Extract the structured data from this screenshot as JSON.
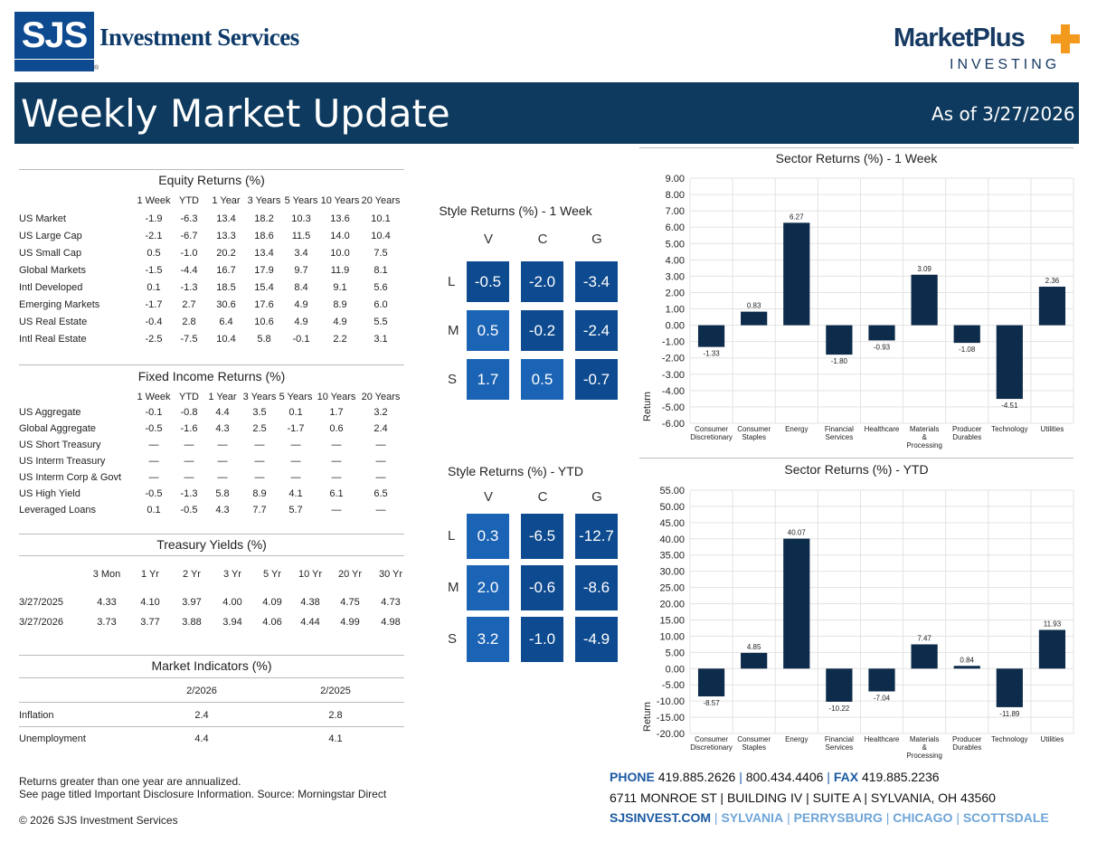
{
  "header": {
    "logo_text": "SJS",
    "company": "Investment Services",
    "registered": "®",
    "brand_title": "MarketPlus",
    "brand_sub": "INVESTING",
    "title": "Weekly Market Update",
    "as_of": "As of 3/27/2026"
  },
  "colors": {
    "navy": "#0d3a5e",
    "dark_bar": "#0d2b4a",
    "style_dark": "#0d4a8f",
    "style_light": "#1a6cc0"
  },
  "equity": {
    "title": "Equity Returns (%)",
    "columns": [
      "1 Week",
      "YTD",
      "1 Year",
      "3 Years",
      "5 Years",
      "10 Years",
      "20 Years"
    ],
    "rows": [
      {
        "label": "US Market",
        "values": [
          "-1.9",
          "-6.3",
          "13.4",
          "18.2",
          "10.3",
          "13.6",
          "10.1"
        ]
      },
      {
        "label": "US Large Cap",
        "values": [
          "-2.1",
          "-6.7",
          "13.3",
          "18.6",
          "11.5",
          "14.0",
          "10.4"
        ]
      },
      {
        "label": "US Small Cap",
        "values": [
          "0.5",
          "-1.0",
          "20.2",
          "13.4",
          "3.4",
          "10.0",
          "7.5"
        ]
      },
      {
        "label": "Global Markets",
        "values": [
          "-1.5",
          "-4.4",
          "16.7",
          "17.9",
          "9.7",
          "11.9",
          "8.1"
        ]
      },
      {
        "label": "Intl Developed",
        "values": [
          "0.1",
          "-1.3",
          "18.5",
          "15.4",
          "8.4",
          "9.1",
          "5.6"
        ]
      },
      {
        "label": "Emerging Markets",
        "values": [
          "-1.7",
          "2.7",
          "30.6",
          "17.6",
          "4.9",
          "8.9",
          "6.0"
        ]
      },
      {
        "label": "US Real Estate",
        "values": [
          "-0.4",
          "2.8",
          "6.4",
          "10.6",
          "4.9",
          "4.9",
          "5.5"
        ]
      },
      {
        "label": "Intl Real Estate",
        "values": [
          "-2.5",
          "-7.5",
          "10.4",
          "5.8",
          "-0.1",
          "2.2",
          "3.1"
        ]
      }
    ]
  },
  "fixed": {
    "title": "Fixed Income Returns (%)",
    "columns": [
      "1 Week",
      "YTD",
      "1 Year",
      "3 Years",
      "5 Years",
      "10 Years",
      "20 Years"
    ],
    "rows": [
      {
        "label": "US Aggregate",
        "values": [
          "-0.1",
          "-0.8",
          "4.4",
          "3.5",
          "0.1",
          "1.7",
          "3.2"
        ]
      },
      {
        "label": "Global Aggregate",
        "values": [
          "-0.5",
          "-1.6",
          "4.3",
          "2.5",
          "-1.7",
          "0.6",
          "2.4"
        ]
      },
      {
        "label": "US Short Treasury",
        "values": [
          "—",
          "—",
          "—",
          "—",
          "—",
          "—",
          "—"
        ]
      },
      {
        "label": "US Interm Treasury",
        "values": [
          "—",
          "—",
          "—",
          "—",
          "—",
          "—",
          "—"
        ]
      },
      {
        "label": "US Interm Corp & Govt",
        "values": [
          "—",
          "—",
          "—",
          "—",
          "—",
          "—",
          "—"
        ]
      },
      {
        "label": "US High Yield",
        "values": [
          "-0.5",
          "-1.3",
          "5.8",
          "8.9",
          "4.1",
          "6.1",
          "6.5"
        ]
      },
      {
        "label": "Leveraged Loans",
        "values": [
          "0.1",
          "-0.5",
          "4.3",
          "7.7",
          "5.7",
          "—",
          "—"
        ]
      }
    ]
  },
  "treasury": {
    "title": "Treasury Yields (%)",
    "columns": [
      "3 Mon",
      "1 Yr",
      "2 Yr",
      "3 Yr",
      "5 Yr",
      "10 Yr",
      "20 Yr",
      "30 Yr"
    ],
    "rows": [
      {
        "label": "3/27/2025",
        "values": [
          "4.33",
          "4.10",
          "3.97",
          "4.00",
          "4.09",
          "4.38",
          "4.75",
          "4.73"
        ]
      },
      {
        "label": "3/27/2026",
        "values": [
          "3.73",
          "3.77",
          "3.88",
          "3.94",
          "4.06",
          "4.44",
          "4.99",
          "4.98"
        ]
      }
    ]
  },
  "indicators": {
    "title": "Market Indicators (%)",
    "columns": [
      "2/2026",
      "2/2025"
    ],
    "rows": [
      {
        "label": "Inflation",
        "values": [
          "2.4",
          "2.8"
        ]
      },
      {
        "label": "Unemployment",
        "values": [
          "4.4",
          "4.1"
        ]
      }
    ]
  },
  "style_week": {
    "title": "Style Returns (%)  - 1 Week",
    "cols": [
      "V",
      "C",
      "G"
    ],
    "rows": [
      "L",
      "M",
      "S"
    ],
    "values": [
      [
        "-0.5",
        "-2.0",
        "-3.4"
      ],
      [
        "0.5",
        "-0.2",
        "-2.4"
      ],
      [
        "1.7",
        "0.5",
        "-0.7"
      ]
    ]
  },
  "style_ytd": {
    "title": "Style Returns (%)  - YTD",
    "cols": [
      "V",
      "C",
      "G"
    ],
    "rows": [
      "L",
      "M",
      "S"
    ],
    "values": [
      [
        "0.3",
        "-6.5",
        "-12.7"
      ],
      [
        "2.0",
        "-0.6",
        "-8.6"
      ],
      [
        "3.2",
        "-1.0",
        "-4.9"
      ]
    ]
  },
  "chart_data": [
    {
      "type": "bar",
      "title": "Sector Returns (%)  - 1 Week",
      "ylabel": "Return",
      "xlabel": "",
      "categories": [
        "Consumer Discretionary",
        "Consumer Staples",
        "Energy",
        "Financial Services",
        "Healthcare",
        "Materials & Processing",
        "Producer Durables",
        "Technology",
        "Utilities"
      ],
      "values": [
        -1.33,
        0.83,
        6.27,
        -1.8,
        -0.93,
        3.09,
        -1.08,
        -4.51,
        2.36
      ],
      "labels": [
        "-1.33",
        "0.83",
        "6.27",
        "-1.80",
        "-0.93",
        "3.09",
        "-1.08",
        "-4.51",
        "2.36"
      ],
      "ticks": [
        "9.00",
        "8.00",
        "7.00",
        "6.00",
        "5.00",
        "4.00",
        "3.00",
        "2.00",
        "1.00",
        "0.00",
        "-1.00",
        "-2.00",
        "-3.00",
        "-4.00",
        "-5.00",
        "-6.00"
      ],
      "ylim": [
        -6,
        9
      ],
      "grid": true
    },
    {
      "type": "bar",
      "title": "Sector Returns (%)  - YTD",
      "ylabel": "Return",
      "xlabel": "",
      "categories": [
        "Consumer Discretionary",
        "Consumer Staples",
        "Energy",
        "Financial Services",
        "Healthcare",
        "Materials & Processing",
        "Producer Durables",
        "Technology",
        "Utilities"
      ],
      "values": [
        -8.57,
        4.85,
        40.07,
        -10.22,
        -7.04,
        7.47,
        0.84,
        -11.89,
        11.93
      ],
      "labels": [
        "-8.57",
        "4.85",
        "40.07",
        "-10.22",
        "-7.04",
        "7.47",
        "0.84",
        "-11.89",
        "11.93"
      ],
      "ticks": [
        "55.00",
        "50.00",
        "45.00",
        "40.00",
        "35.00",
        "30.00",
        "25.00",
        "20.00",
        "15.00",
        "10.00",
        "5.00",
        "0.00",
        "-5.00",
        "-10.00",
        "-15.00",
        "-20.00"
      ],
      "ylim": [
        -20,
        55
      ],
      "grid": true
    }
  ],
  "footer": {
    "note1": "Returns greater than one year are annualized.",
    "note2": "See page titled Important Disclosure Information. Source: Morningstar Direct",
    "copyright": "© 2026 SJS Investment Services",
    "phone_label": "PHONE",
    "phone": "419.885.2626",
    "phone2": "800.434.4406",
    "fax_label": "FAX",
    "fax": "419.885.2236",
    "address": "6711 MONROE ST  |  BUILDING IV  |  SUITE A  |  SYLVANIA, OH 43560",
    "web": "SJSINVEST.COM",
    "cities": [
      "SYLVANIA",
      "PERRYSBURG",
      "CHICAGO",
      "SCOTTSDALE"
    ]
  }
}
